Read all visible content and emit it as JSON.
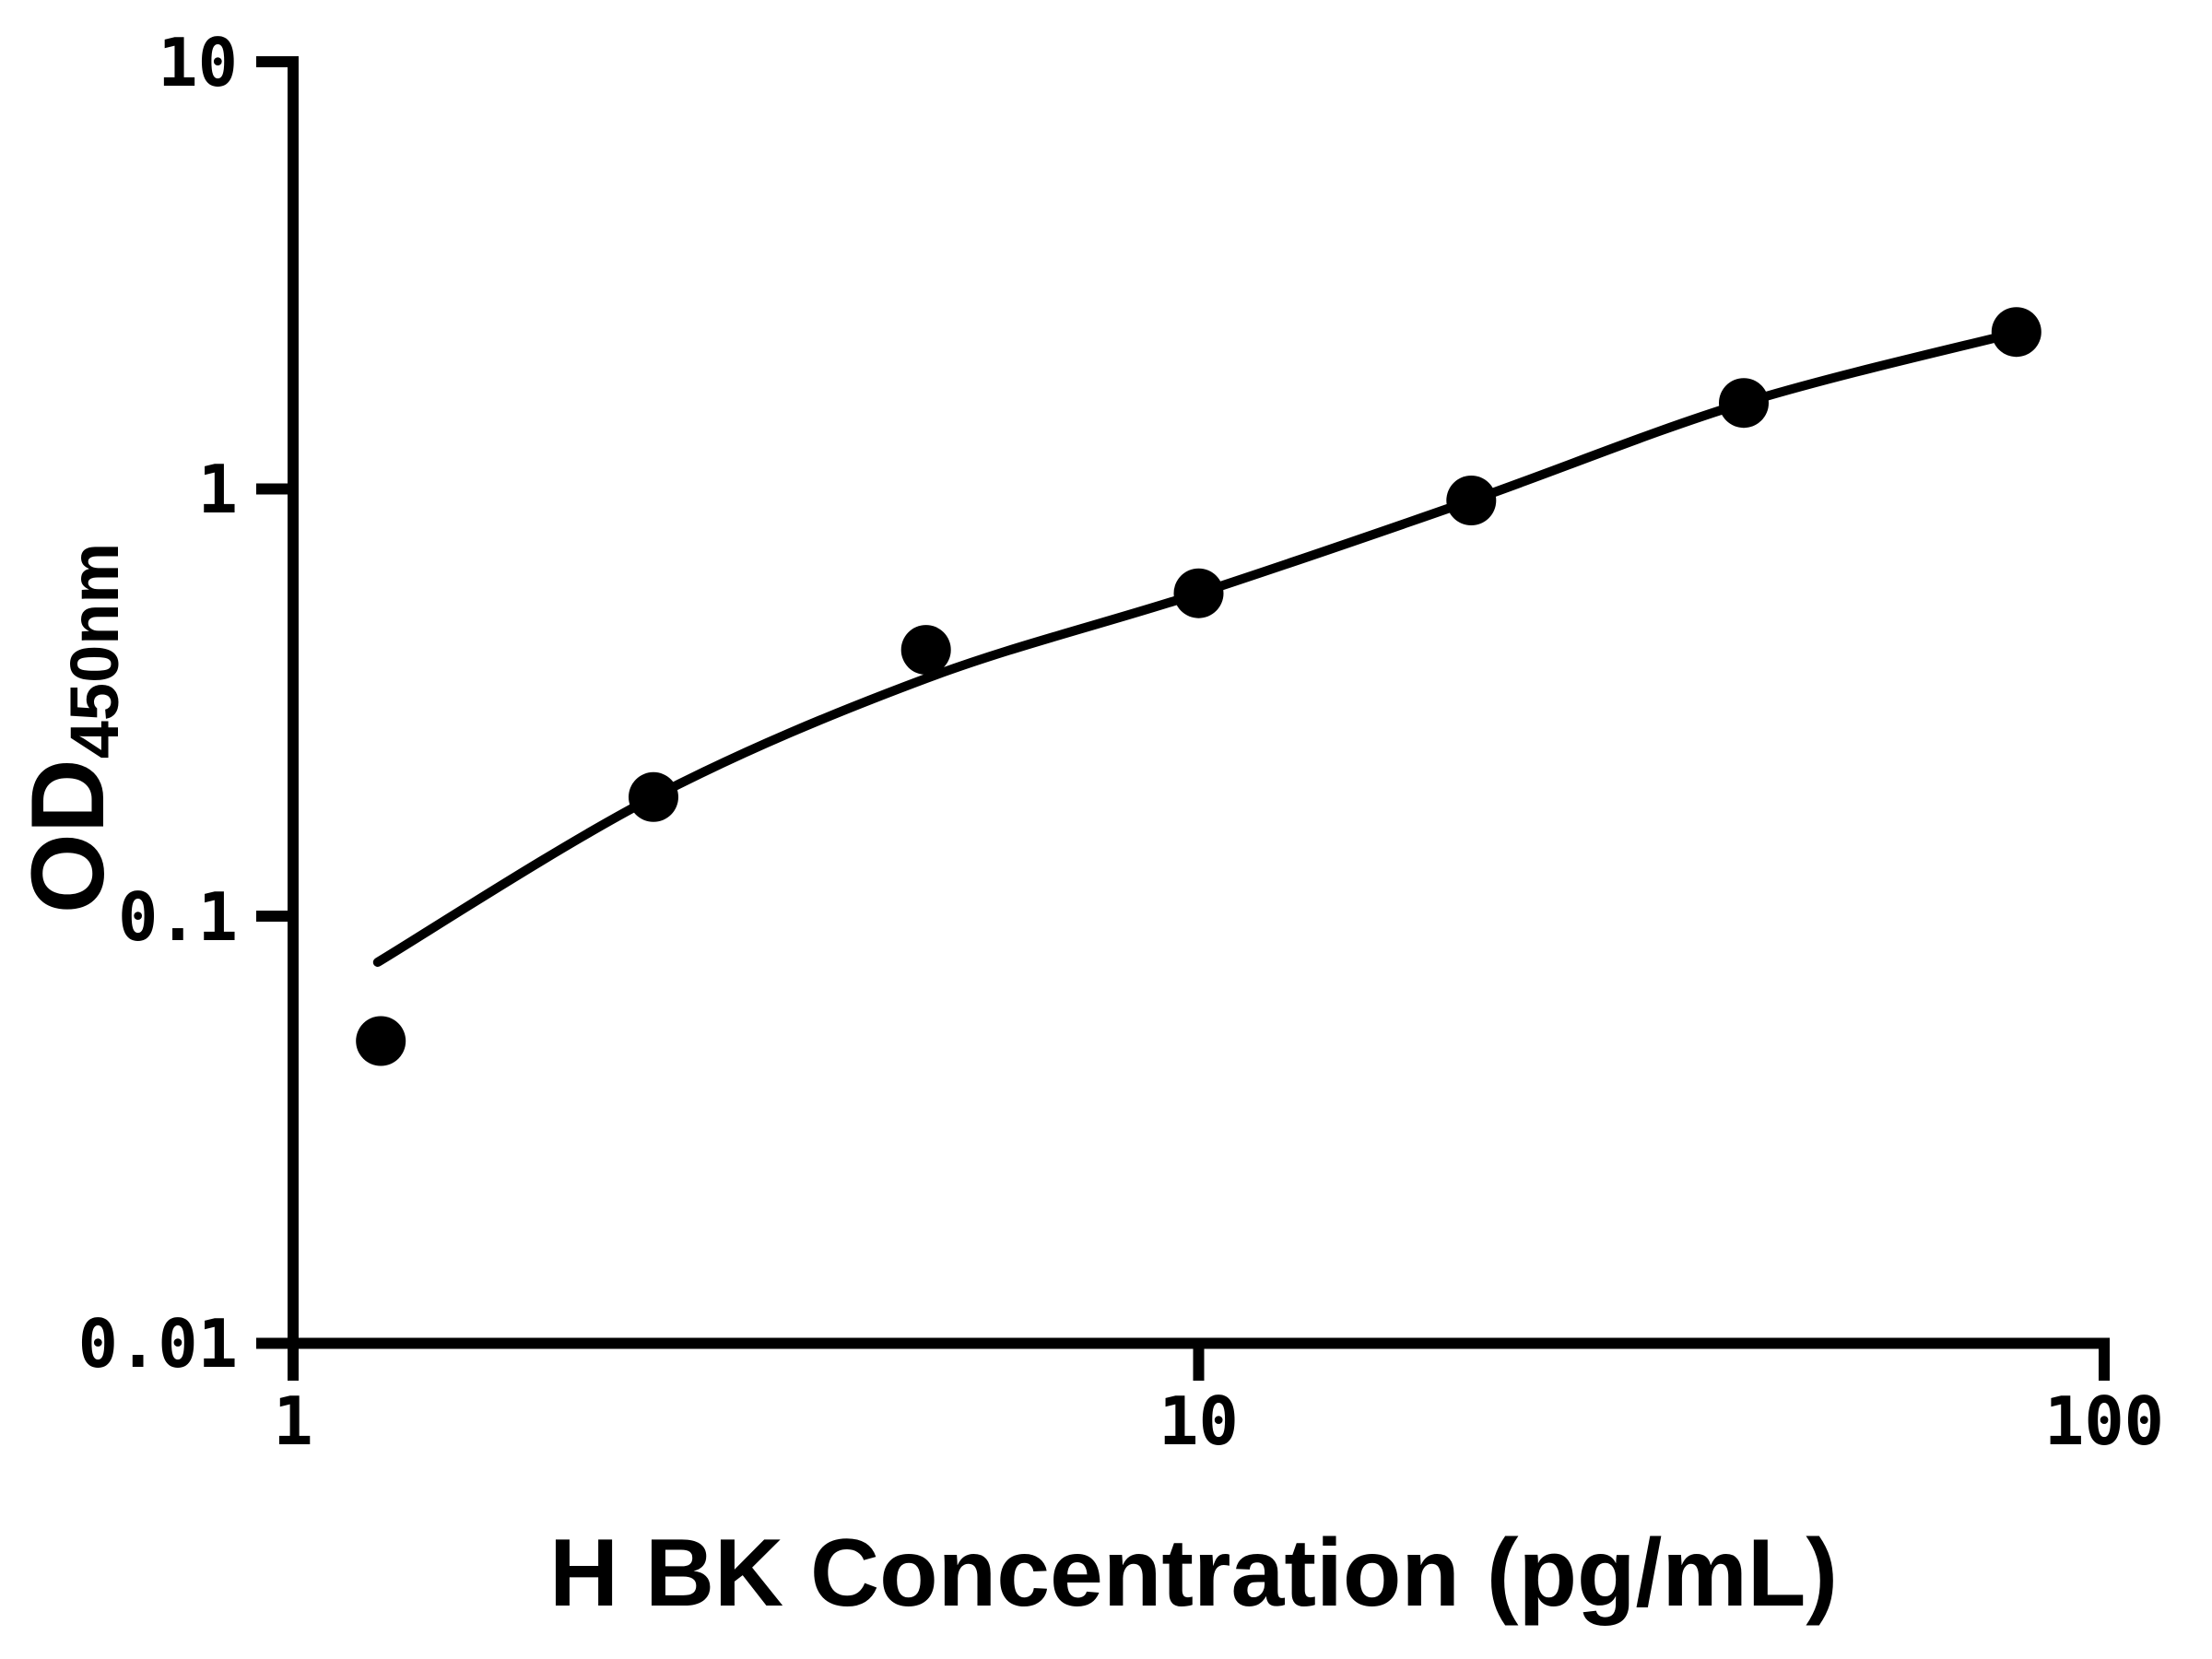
{
  "chart_data": {
    "type": "scatter",
    "title": "",
    "xlabel": "H BK Concentration (pg/mL)",
    "ylabel": "OD",
    "ylabel_sub": "450nm",
    "x_scale": "log",
    "y_scale": "log",
    "xlim": [
      1,
      100
    ],
    "ylim": [
      0.01,
      10
    ],
    "grid": false,
    "legend": "none",
    "x_ticks": [
      {
        "value": 1,
        "label": "1"
      },
      {
        "value": 10,
        "label": "10"
      },
      {
        "value": 100,
        "label": "100"
      }
    ],
    "y_ticks": [
      {
        "value": 10,
        "label": "10"
      },
      {
        "value": 1,
        "label": "1"
      },
      {
        "value": 0.1,
        "label": "0.1"
      },
      {
        "value": 0.01,
        "label": "0.01"
      }
    ],
    "series": [
      {
        "name": "standard-points",
        "type": "scatter",
        "marker": "filled-circle",
        "color": "#000000",
        "points": [
          [
            1.25,
            0.051
          ],
          [
            2.5,
            0.19
          ],
          [
            5,
            0.42
          ],
          [
            10,
            0.57
          ],
          [
            20,
            0.94
          ],
          [
            40,
            1.59
          ],
          [
            80,
            2.33
          ]
        ]
      },
      {
        "name": "fit-curve",
        "type": "line",
        "color": "#000000",
        "points": [
          [
            1.24,
            0.078
          ],
          [
            2.5,
            0.19
          ],
          [
            5,
            0.36
          ],
          [
            10,
            0.57
          ],
          [
            20,
            0.94
          ],
          [
            40,
            1.59
          ],
          [
            80.6,
            2.33
          ]
        ]
      }
    ]
  },
  "colors": {
    "background": "#ffffff",
    "axis": "#000000",
    "marker": "#000000",
    "curve": "#000000"
  }
}
